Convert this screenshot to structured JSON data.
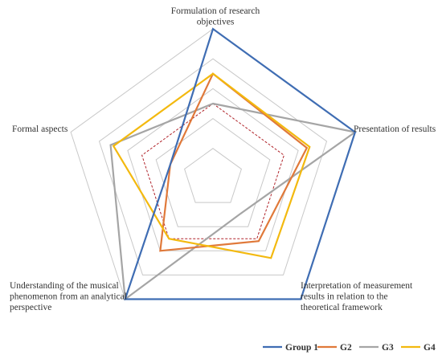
{
  "chart_data": {
    "type": "radar",
    "axes": [
      "Formulation of research objectives",
      "Presentation of results",
      "Interpretation of measurement results in relation to the theoretical framework",
      "Understanding of the musical phenomenon from an analytical perspective",
      "Formal aspects"
    ],
    "axis_label_lines": [
      [
        "Formulation of research",
        "objectives"
      ],
      [
        "Presentation of results"
      ],
      [
        "Interpretation of measurement",
        "results in relation to the",
        "theoretical framework"
      ],
      [
        "Understanding of the musical",
        "phenomenon from an analytical",
        "perspective"
      ],
      [
        "Formal aspects"
      ]
    ],
    "range": [
      0,
      5
    ],
    "grid_levels": [
      1,
      2,
      3,
      4,
      5
    ],
    "reference_line": {
      "value": 2.5,
      "color": "#b0232a",
      "style": "dashed"
    },
    "series": [
      {
        "name": "Group 1",
        "color": "#3f6db3",
        "values": [
          5,
          5,
          5,
          5,
          1.5
        ]
      },
      {
        "name": "G2",
        "color": "#e0793a",
        "values": [
          3.5,
          3.3,
          2.6,
          3.0,
          1.5
        ]
      },
      {
        "name": "G3",
        "color": "#a5a5a5",
        "values": [
          2.5,
          5,
          1.5,
          5,
          3.6
        ]
      },
      {
        "name": "G4",
        "color": "#f3b90f",
        "values": [
          3.5,
          3.4,
          3.3,
          2.5,
          3.5
        ]
      }
    ],
    "legend_position": "bottom-right"
  }
}
